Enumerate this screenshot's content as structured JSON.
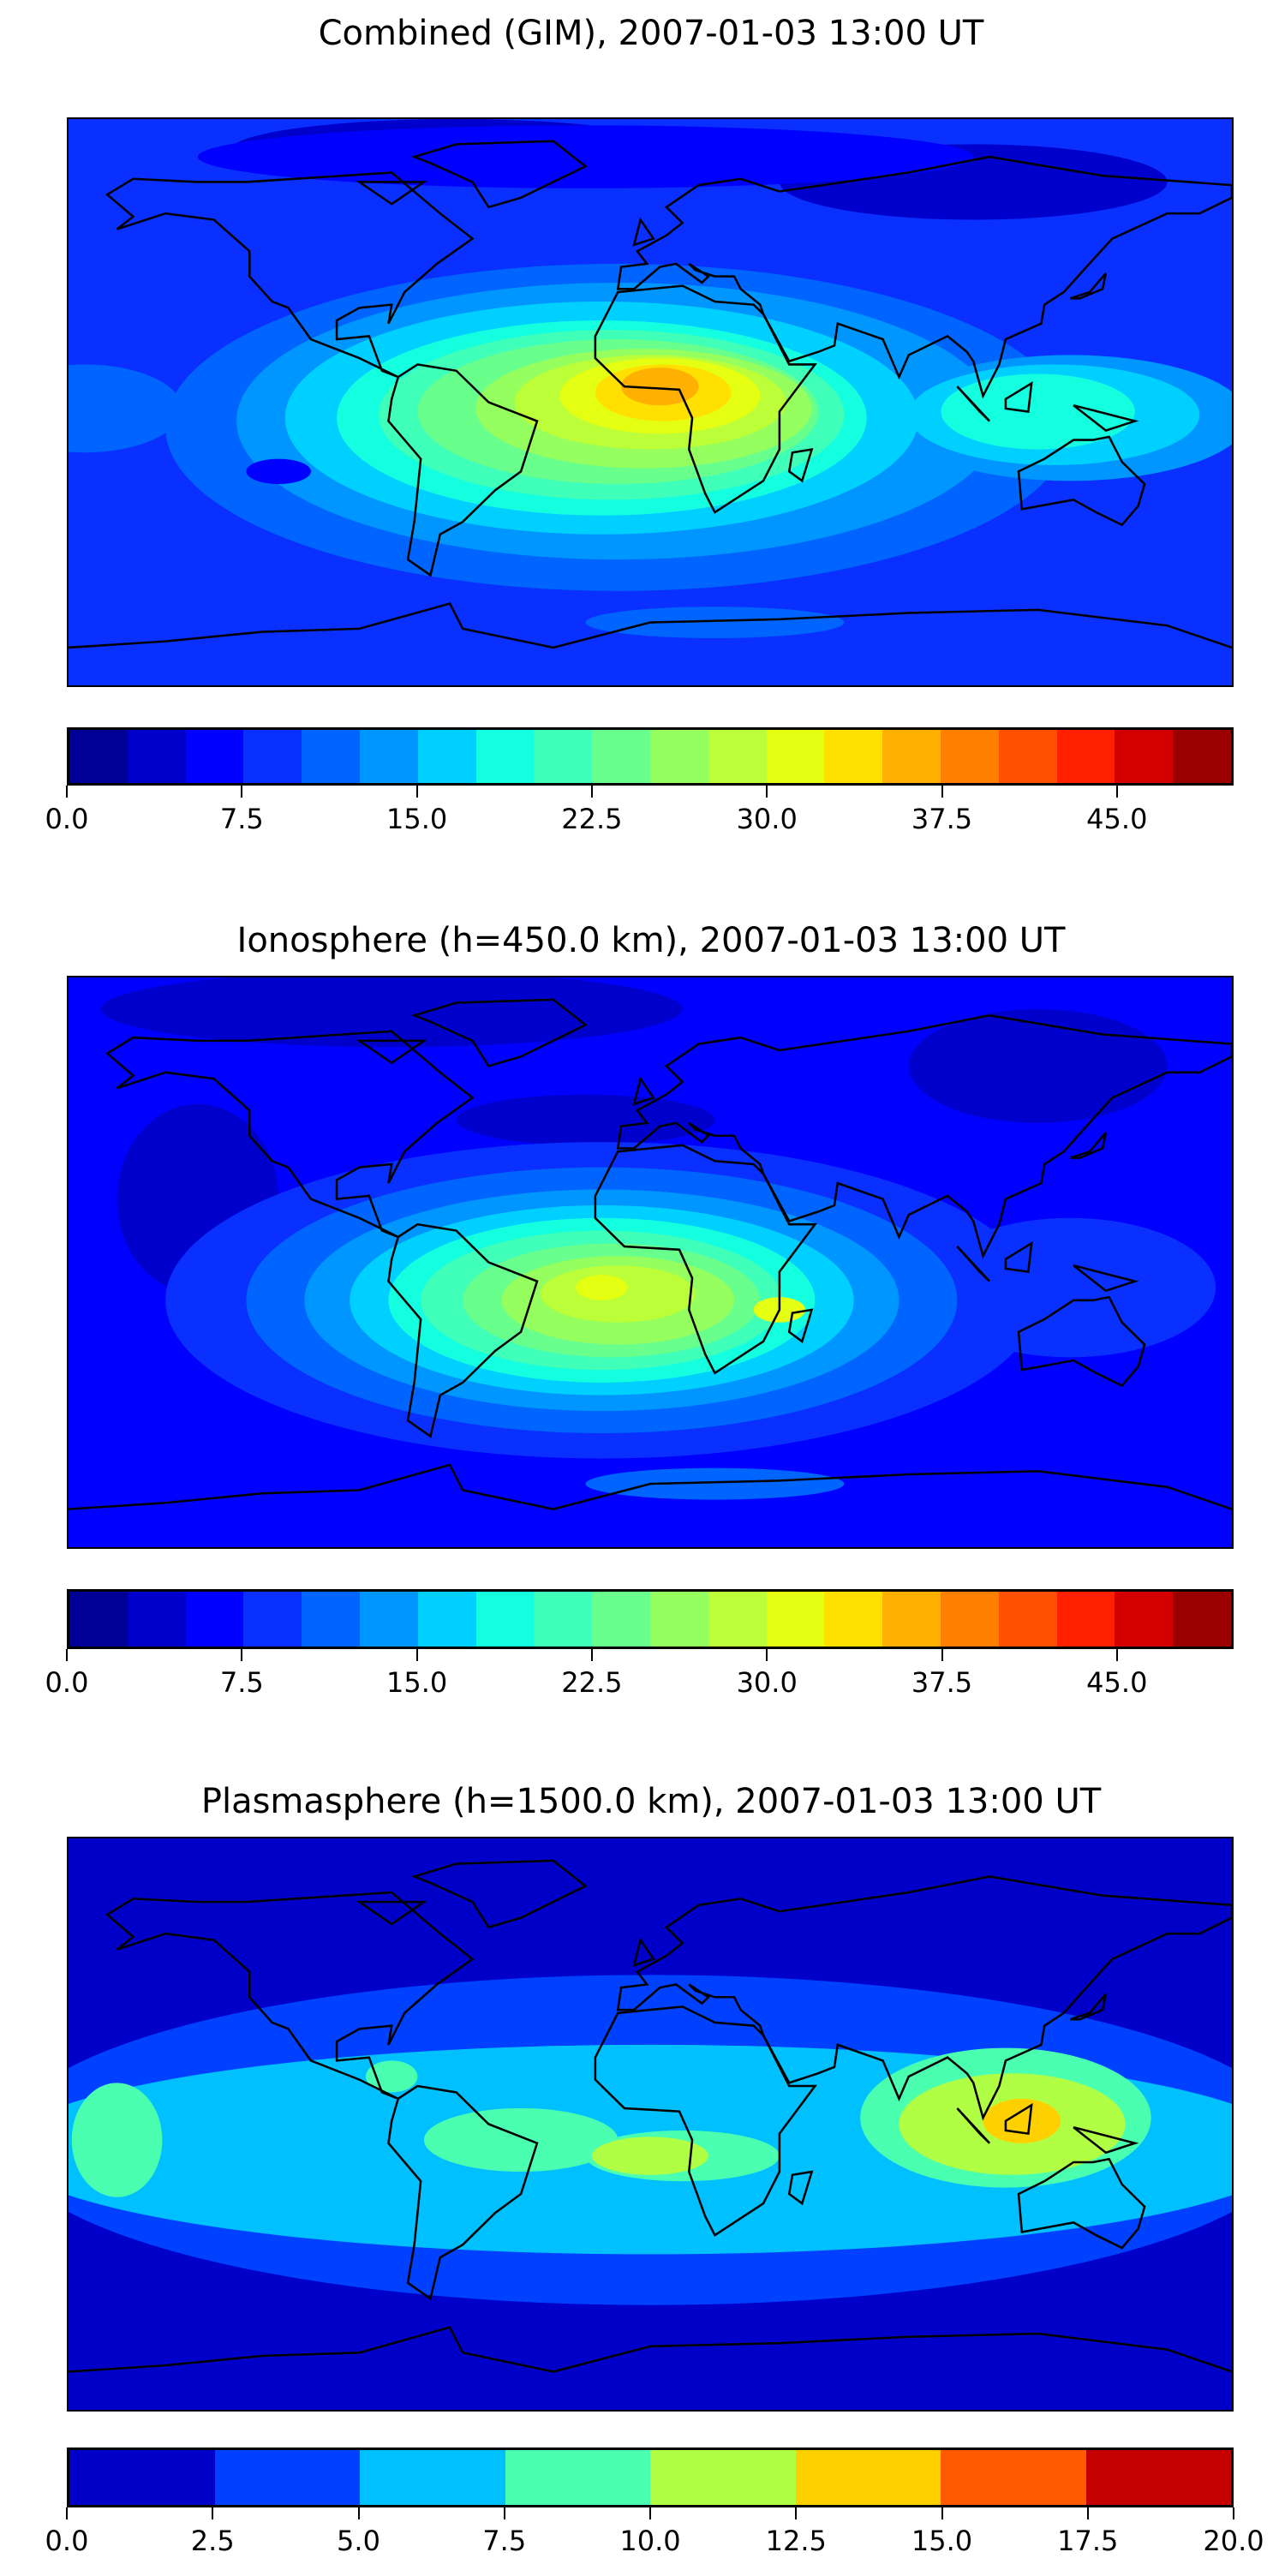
{
  "chart_data": [
    {
      "type": "heatmap",
      "title": "Combined (GIM), 2007-01-03 13:00 UT",
      "colorbar": {
        "range": [
          0,
          50
        ],
        "step": 2.5,
        "ticks": [
          "0.0",
          "7.5",
          "15.0",
          "22.5",
          "30.0",
          "37.5",
          "45.0"
        ],
        "tick_values": [
          0,
          7.5,
          15,
          22.5,
          30,
          37.5,
          45
        ],
        "colors": [
          "#000096",
          "#0000cd",
          "#0000ff",
          "#0a30ff",
          "#0064ff",
          "#0096ff",
          "#00d0ff",
          "#14ffe0",
          "#40ffb8",
          "#68ff8c",
          "#94ff5e",
          "#bcff38",
          "#e4ff12",
          "#ffe000",
          "#ffb000",
          "#ff8000",
          "#ff5000",
          "#ff2000",
          "#d40000",
          "#9a0000"
        ]
      }
    },
    {
      "type": "heatmap",
      "title": "Ionosphere  (h=450.0 km), 2007-01-03 13:00 UT",
      "colorbar": {
        "range": [
          0,
          50
        ],
        "step": 2.5,
        "ticks": [
          "0.0",
          "7.5",
          "15.0",
          "22.5",
          "30.0",
          "37.5",
          "45.0"
        ],
        "tick_values": [
          0,
          7.5,
          15,
          22.5,
          30,
          37.5,
          45
        ],
        "colors": [
          "#000096",
          "#0000cd",
          "#0000ff",
          "#0a30ff",
          "#0064ff",
          "#0096ff",
          "#00d0ff",
          "#14ffe0",
          "#40ffb8",
          "#68ff8c",
          "#94ff5e",
          "#bcff38",
          "#e4ff12",
          "#ffe000",
          "#ffb000",
          "#ff8000",
          "#ff5000",
          "#ff2000",
          "#d40000",
          "#9a0000"
        ]
      }
    },
    {
      "type": "heatmap",
      "title": "Plasmasphere (h=1500.0 km), 2007-01-03 13:00 UT",
      "colorbar": {
        "range": [
          0,
          20
        ],
        "step": 2.5,
        "ticks": [
          "0.0",
          "2.5",
          "5.0",
          "7.5",
          "10.0",
          "12.5",
          "15.0",
          "17.5",
          "20.0"
        ],
        "tick_values": [
          0,
          2.5,
          5,
          7.5,
          10,
          12.5,
          15,
          17.5,
          20
        ],
        "colors": [
          "#0000c8",
          "#0040ff",
          "#00c0ff",
          "#4affb0",
          "#b0ff44",
          "#ffd000",
          "#ff5a00",
          "#c40000"
        ]
      }
    }
  ]
}
